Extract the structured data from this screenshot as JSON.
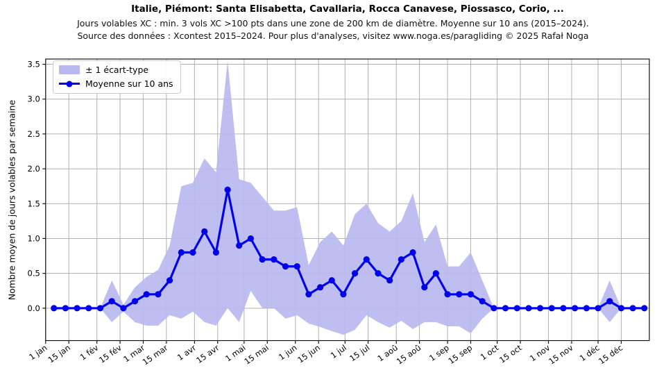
{
  "header": {
    "title": "Italie, Piémont: Santa Elisabetta, Cavallaria, Rocca Canavese, Piossasco, Corio, ...",
    "subtitle1": "Jours volables XC : min. 3 vols XC >100 pts dans une zone de 200 km de diamètre. Moyenne sur 10 ans (2015–2024).",
    "subtitle2": "Source des données : Xcontest 2015–2024. Pour plus d'analyses, visitez www.noga.es/paragliding © 2025 Rafał Noga"
  },
  "colors": {
    "mean_line": "#0000ee",
    "band_fill": "#b9b9f0",
    "grid": "#b0b0b0",
    "spine": "#000000",
    "text": "#000000"
  },
  "chart_data": {
    "type": "line",
    "title": "Italie, Piémont: Santa Elisabetta, Cavallaria, Rocca Canavese, Piossasco, Corio, ...",
    "xlabel": "",
    "ylabel": "Nombre moyen de jours volables par semaine",
    "x_unit": "week_of_year",
    "n_weeks": 52,
    "grid": true,
    "legend_position": "upper left",
    "legend": {
      "band_label": "± 1 écart-type",
      "mean_label": "Moyenne sur 10 ans"
    },
    "ylim": [
      -0.465,
      3.575
    ],
    "y_ticks": [
      0.0,
      0.5,
      1.0,
      1.5,
      2.0,
      2.5,
      3.0,
      3.5
    ],
    "y_tick_labels": [
      "0.0",
      "0.5",
      "1.0",
      "1.5",
      "2.0",
      "2.5",
      "3.0",
      "3.5"
    ],
    "x_tick_labels": [
      "1 jan",
      "15 jan",
      "1 fév",
      "15 fév",
      "1 mar",
      "15 mar",
      "1 avr",
      "15 avr",
      "1 mai",
      "15 mai",
      "1 jun",
      "15 jun",
      "1 jul",
      "15 jul",
      "1 aoû",
      "15 aoû",
      "1 sep",
      "15 sep",
      "1 oct",
      "15 oct",
      "1 nov",
      "15 nov",
      "1 déc",
      "15 déc"
    ],
    "series": [
      {
        "name": "Moyenne sur 10 ans",
        "values": [
          0.0,
          0.0,
          0.0,
          0.0,
          0.0,
          0.1,
          0.0,
          0.1,
          0.2,
          0.2,
          0.4,
          0.8,
          0.8,
          1.1,
          0.8,
          1.7,
          0.9,
          1.0,
          0.7,
          0.7,
          0.6,
          0.6,
          0.2,
          0.3,
          0.4,
          0.2,
          0.5,
          0.7,
          0.5,
          0.4,
          0.7,
          0.8,
          0.3,
          0.5,
          0.2,
          0.2,
          0.2,
          0.1,
          0.0,
          0.0,
          0.0,
          0.0,
          0.0,
          0.0,
          0.0,
          0.0,
          0.0,
          0.0,
          0.1,
          0.0,
          0.0,
          0.0
        ]
      },
      {
        "name": "band_upper (+1 écart-type)",
        "values": [
          0.0,
          0.0,
          0.0,
          0.0,
          0.0,
          0.4,
          0.05,
          0.3,
          0.45,
          0.55,
          0.9,
          1.75,
          1.8,
          2.15,
          1.95,
          3.55,
          1.85,
          1.8,
          1.6,
          1.4,
          1.4,
          1.45,
          0.62,
          0.95,
          1.1,
          0.9,
          1.35,
          1.5,
          1.22,
          1.1,
          1.25,
          1.65,
          0.95,
          1.2,
          0.6,
          0.6,
          0.8,
          0.4,
          0.0,
          0.0,
          0.0,
          0.0,
          0.0,
          0.0,
          0.0,
          0.0,
          0.0,
          0.0,
          0.4,
          0.0,
          0.0,
          0.0
        ]
      },
      {
        "name": "band_lower (-1 écart-type)",
        "values": [
          0.0,
          0.0,
          0.0,
          0.0,
          0.0,
          -0.2,
          -0.05,
          -0.2,
          -0.25,
          -0.25,
          -0.1,
          -0.15,
          -0.05,
          -0.2,
          -0.25,
          0.0,
          -0.2,
          0.25,
          0.0,
          0.0,
          -0.15,
          -0.1,
          -0.22,
          -0.27,
          -0.33,
          -0.38,
          -0.31,
          -0.1,
          -0.2,
          -0.28,
          -0.18,
          -0.3,
          -0.2,
          -0.2,
          -0.26,
          -0.26,
          -0.36,
          -0.15,
          0.0,
          0.0,
          0.0,
          0.0,
          0.0,
          0.0,
          0.0,
          0.0,
          0.0,
          0.0,
          -0.2,
          0.0,
          0.0,
          0.0
        ]
      }
    ]
  }
}
